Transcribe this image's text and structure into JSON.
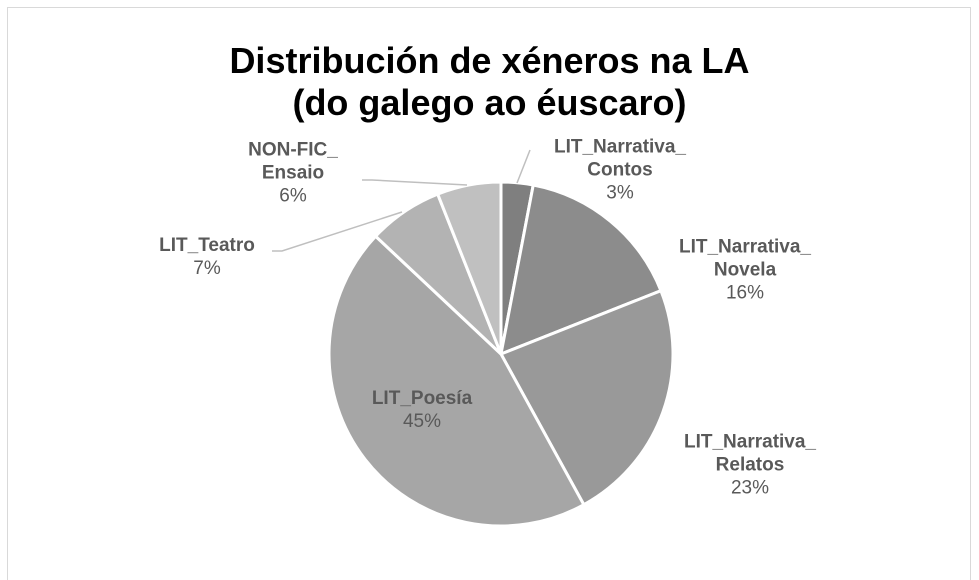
{
  "chart_data": {
    "type": "pie",
    "title": [
      "Distribución de xéneros na LA",
      "(do galego ao éuscaro)"
    ],
    "categories": [
      "LIT_Narrativa_Contos",
      "LIT_Narrativa_Novela",
      "LIT_Narrativa_Relatos",
      "LIT_Poesía",
      "LIT_Teatro",
      "NON-FIC_Ensaio"
    ],
    "values": [
      3,
      16,
      23,
      45,
      7,
      6
    ],
    "value_labels": [
      "3%",
      "16%",
      "23%",
      "45%",
      "7%",
      "6%"
    ],
    "colors": [
      "#7f7f7f",
      "#8c8c8c",
      "#999999",
      "#a6a6a6",
      "#b3b3b3",
      "#c0c0c0"
    ]
  }
}
